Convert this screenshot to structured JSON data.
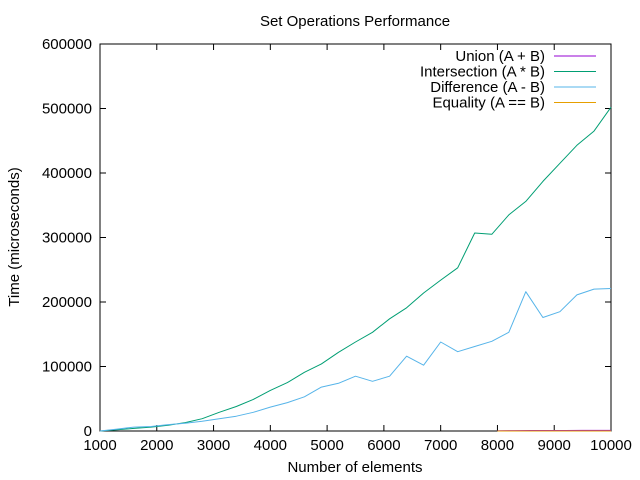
{
  "chart_data": {
    "type": "line",
    "title": "Set Operations Performance",
    "xlabel": "Number of elements",
    "ylabel": "Time (microseconds)",
    "xlim": [
      1000,
      10000
    ],
    "ylim": [
      0,
      600000
    ],
    "xticks": [
      1000,
      2000,
      3000,
      4000,
      5000,
      6000,
      7000,
      8000,
      9000,
      10000
    ],
    "yticks": [
      0,
      100000,
      200000,
      300000,
      400000,
      500000,
      600000
    ],
    "grid": false,
    "legend_position": "top-right",
    "series": [
      {
        "name": "Union (A + B)",
        "color": "#9400d3",
        "x": [
          8000,
          8300,
          8600,
          8900,
          9200,
          9500,
          9800,
          10000
        ],
        "y": [
          500,
          600,
          700,
          700,
          800,
          900,
          900,
          1000
        ]
      },
      {
        "name": "Intersection (A * B)",
        "color": "#009e73",
        "x": [
          1000,
          1300,
          1600,
          1900,
          2200,
          2500,
          2800,
          3100,
          3400,
          3700,
          4000,
          4300,
          4600,
          4900,
          5200,
          5500,
          5800,
          6100,
          6400,
          6700,
          7000,
          7300,
          7600,
          7900,
          8200,
          8500,
          8800,
          9100,
          9400,
          9700,
          10000
        ],
        "y": [
          0,
          2000,
          4000,
          6000,
          9000,
          13000,
          19000,
          29000,
          38000,
          49000,
          63000,
          75000,
          91000,
          104000,
          122000,
          138000,
          153000,
          174000,
          191000,
          214000,
          234000,
          253000,
          307000,
          305000,
          335000,
          356000,
          387000,
          415000,
          443000,
          465000,
          502000
        ]
      },
      {
        "name": "Difference (A - B)",
        "color": "#56b4e9",
        "x": [
          1000,
          1300,
          1600,
          1900,
          2200,
          2500,
          2800,
          3100,
          3400,
          3700,
          4000,
          4300,
          4600,
          4900,
          5200,
          5500,
          5800,
          6100,
          6400,
          6700,
          7000,
          7300,
          7600,
          7900,
          8200,
          8500,
          8800,
          9100,
          9400,
          9700,
          10000
        ],
        "y": [
          0,
          3000,
          6000,
          7000,
          10000,
          12000,
          15000,
          19000,
          23000,
          29000,
          37000,
          44000,
          53000,
          68000,
          74000,
          85000,
          77000,
          85000,
          116000,
          102000,
          138000,
          123000,
          131000,
          139000,
          153000,
          216000,
          176000,
          185000,
          211000,
          220000,
          221000
        ]
      },
      {
        "name": "Equality (A == B)",
        "color": "#e69f00",
        "x": [
          8000,
          10000
        ],
        "y": [
          0,
          0
        ]
      }
    ]
  }
}
